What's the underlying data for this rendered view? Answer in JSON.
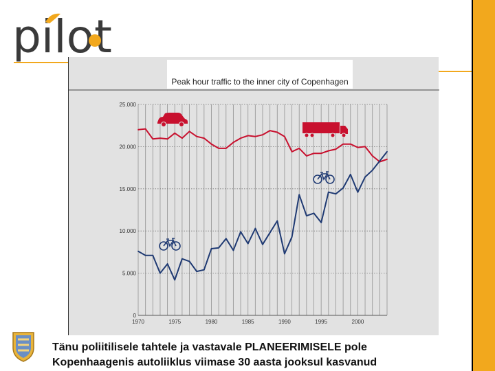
{
  "slide": {
    "logo": {
      "text": "pilot"
    },
    "caption": {
      "line1": "Tänu poliitilisele tahtele ja vastavale PLANEERIMISELE pole",
      "line2": "Kopenhaagenis autoliiklus viimase 30 aasta jooksul kasvanud"
    },
    "colors": {
      "accent": "#f2a81d",
      "car_series": "#c8102e",
      "bike_series": "#1f3a73",
      "panel_bg": "#e2e2e2"
    }
  },
  "chart_data": {
    "type": "line",
    "title": "Peak hour traffic to the inner city of Copenhagen",
    "xlabel": "",
    "ylabel": "",
    "xlim": [
      1970,
      2004
    ],
    "ylim": [
      0,
      25000
    ],
    "x_ticks": [
      1970,
      1975,
      1980,
      1985,
      1990,
      1995,
      2000
    ],
    "x_tick_labels": [
      "1970",
      "1975",
      "1980",
      "1985",
      "1990",
      "1995",
      "2000"
    ],
    "y_ticks": [
      0,
      5000,
      10000,
      15000,
      20000,
      25000
    ],
    "y_tick_labels": [
      "0",
      "5.000",
      "10.000",
      "15.000",
      "20.000",
      "25.000"
    ],
    "grid": true,
    "legend": "icons",
    "series": [
      {
        "icon": "car-and-truck",
        "color": "#c8102e",
        "x": [
          1970,
          1971,
          1972,
          1973,
          1974,
          1975,
          1976,
          1977,
          1978,
          1979,
          1980,
          1981,
          1982,
          1983,
          1984,
          1985,
          1986,
          1987,
          1988,
          1989,
          1990,
          1991,
          1992,
          1993,
          1994,
          1995,
          1996,
          1997,
          1998,
          1999,
          2000,
          2001,
          2002,
          2003,
          2004
        ],
        "y": [
          22000,
          22100,
          20900,
          21000,
          20900,
          21600,
          21000,
          21800,
          21200,
          21000,
          20300,
          19800,
          19800,
          20500,
          21000,
          21300,
          21200,
          21400,
          21900,
          21700,
          21200,
          19400,
          19800,
          18900,
          19200,
          19200,
          19500,
          19700,
          20300,
          20300,
          19900,
          20000,
          18900,
          18200,
          18500
        ]
      },
      {
        "icon": "bicycle",
        "color": "#1f3a73",
        "x": [
          1970,
          1971,
          1972,
          1973,
          1974,
          1975,
          1976,
          1977,
          1978,
          1979,
          1980,
          1981,
          1982,
          1983,
          1984,
          1985,
          1986,
          1987,
          1988,
          1989,
          1990,
          1991,
          1992,
          1993,
          1994,
          1995,
          1996,
          1997,
          1998,
          1999,
          2000,
          2001,
          2002,
          2003,
          2004
        ],
        "y": [
          7600,
          7100,
          7100,
          5000,
          6100,
          4200,
          6700,
          6400,
          5200,
          5400,
          7900,
          8000,
          9100,
          7700,
          9900,
          8500,
          10300,
          8400,
          9800,
          11200,
          7300,
          9300,
          14300,
          11800,
          12100,
          11000,
          14600,
          14400,
          15100,
          16700,
          14600,
          16400,
          17200,
          18300,
          19400
        ]
      }
    ]
  }
}
